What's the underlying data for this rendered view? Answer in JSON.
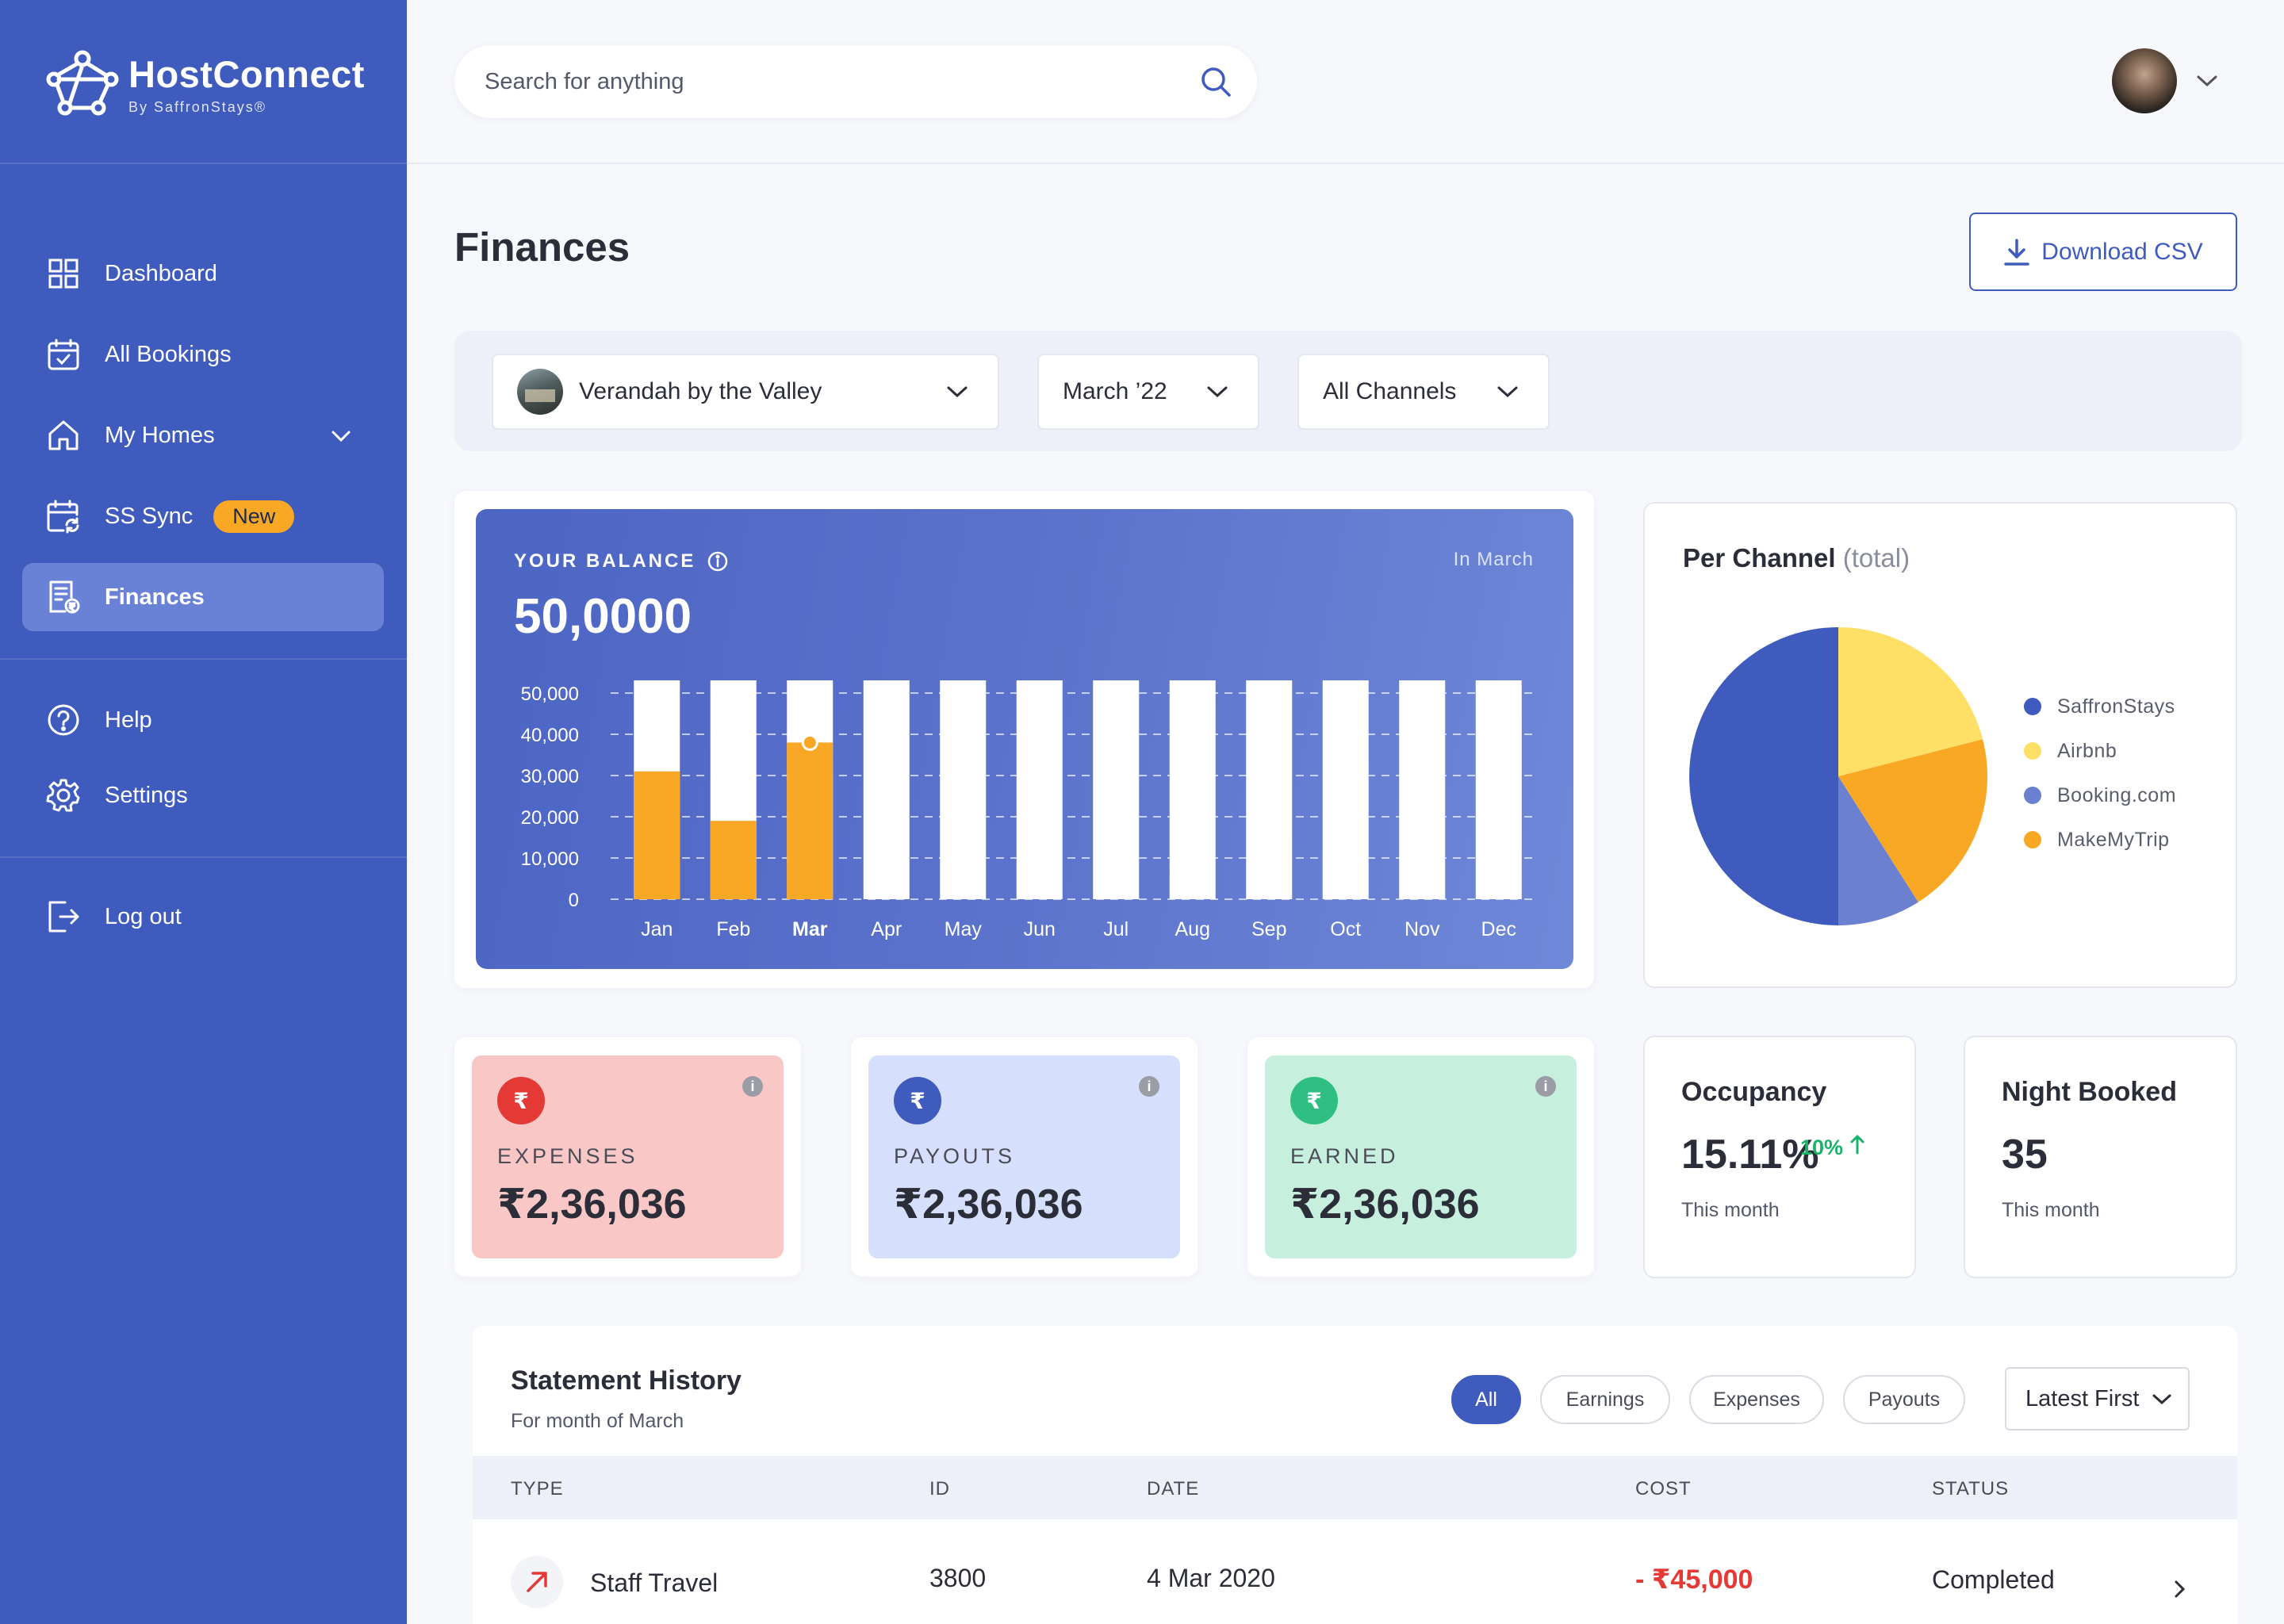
{
  "brand": {
    "name": "HostConnect",
    "sub": "By SaffronStays®"
  },
  "sidebar": {
    "items": [
      {
        "label": "Dashboard",
        "icon": "grid-icon"
      },
      {
        "label": "All Bookings",
        "icon": "calendar-check-icon"
      },
      {
        "label": "My Homes",
        "icon": "home-icon"
      },
      {
        "label": "SS Sync",
        "icon": "calendar-sync-icon",
        "badge": "New"
      },
      {
        "label": "Finances",
        "icon": "receipt-icon",
        "active": true
      },
      {
        "label": "Help",
        "icon": "help-icon"
      },
      {
        "label": "Settings",
        "icon": "gear-icon"
      },
      {
        "label": "Log out",
        "icon": "logout-icon"
      }
    ]
  },
  "header": {
    "search_placeholder": "Search for anything"
  },
  "page": {
    "title": "Finances",
    "download_label": "Download CSV"
  },
  "filters": {
    "home": "Verandah by the Valley",
    "month": "March ’22",
    "channel": "All Channels"
  },
  "balance": {
    "label": "YOUR BALANCE",
    "value": "50,0000",
    "period": "In March"
  },
  "chart_data": {
    "type": "bar",
    "categories": [
      "Jan",
      "Feb",
      "Mar",
      "Apr",
      "May",
      "Jun",
      "Jul",
      "Aug",
      "Sep",
      "Oct",
      "Nov",
      "Dec"
    ],
    "values": [
      31000,
      19000,
      38000,
      0,
      0,
      0,
      0,
      0,
      0,
      0,
      0,
      0
    ],
    "max": 50000,
    "ylim": [
      0,
      50000
    ],
    "yticks": [
      "50,000",
      "40,000",
      "30,000",
      "20,000",
      "10,000",
      "0"
    ],
    "highlight": "Mar",
    "colors": {
      "value": "#f9a825",
      "track": "#ffffff"
    }
  },
  "per_channel": {
    "title": "Per Channel",
    "title_note": "(total)",
    "chart_data": {
      "type": "pie",
      "labels": [
        "SaffronStays",
        "Airbnb",
        "Booking.com",
        "MakeMyTrip"
      ],
      "values": [
        50,
        21,
        9,
        20
      ],
      "colors": [
        "#3f5bbd",
        "#ffe066",
        "#6b80cf",
        "#f9a825"
      ]
    }
  },
  "stats": [
    {
      "label": "EXPENSES",
      "value": "₹2,36,036",
      "bg": "#f9c8c6",
      "icon_bg": "#e53935",
      "icon": "rupee-icon"
    },
    {
      "label": "PAYOUTS",
      "value": "₹2,36,036",
      "bg": "#d6dffb",
      "icon_bg": "#3f5bbd",
      "icon": "rupee-payout-icon"
    },
    {
      "label": "EARNED",
      "value": "₹2,36,036",
      "bg": "#c6efde",
      "icon_bg": "#2fbf82",
      "icon": "rupee-coin-icon"
    }
  ],
  "occupancy": {
    "title": "Occupancy",
    "value": "15.11%",
    "change": "10%",
    "sub": "This month"
  },
  "nights": {
    "title": "Night Booked",
    "value": "35",
    "sub": "This month"
  },
  "statement": {
    "title": "Statement History",
    "sub": "For month of March",
    "filters": [
      "All",
      "Earnings",
      "Expenses",
      "Payouts"
    ],
    "sort": "Latest First",
    "columns": [
      "TYPE",
      "ID",
      "DATE",
      "COST",
      "STATUS"
    ],
    "rows": [
      {
        "type": "Staff Travel",
        "id": "3800",
        "date": "4 Mar 2020",
        "cost": "- ₹45,000",
        "status": "Completed"
      }
    ]
  }
}
